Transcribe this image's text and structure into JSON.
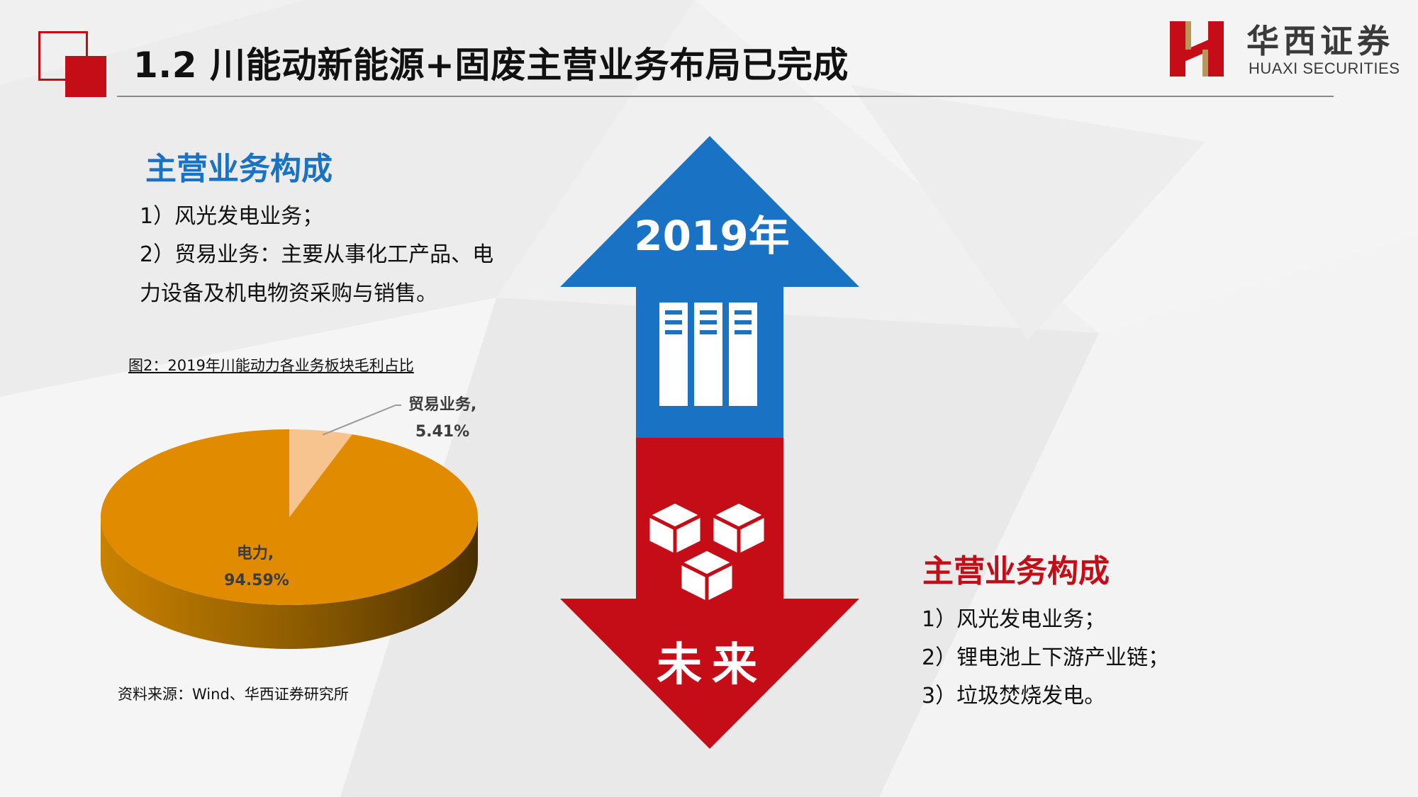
{
  "header": {
    "title": "1.2 川能动新能源+固废主营业务布局已完成"
  },
  "logo": {
    "cn": "华西证券",
    "en": "HUAXI SECURITIES",
    "colors": {
      "red": "#c40d16",
      "gold": "#b8975a"
    }
  },
  "left": {
    "heading": "主营业务构成",
    "items": [
      "1）风光发电业务；",
      "2）贸易业务：主要从事化工产品、电",
      "力设备及机电物资采购与销售。"
    ]
  },
  "chart": {
    "caption": "图2：2019年川能动力各业务板块毛利占比",
    "source": "资料来源：Wind、华西证券研究所"
  },
  "chart_data": {
    "type": "pie",
    "title": "图2：2019年川能动力各业务板块毛利占比",
    "style": "3d",
    "slices": [
      {
        "name": "电力",
        "value": 94.59,
        "label": "电力,",
        "value_label": "94.59%",
        "color": "#e18c00"
      },
      {
        "name": "贸易业务",
        "value": 5.41,
        "label": "贸易业务,",
        "value_label": "5.41%",
        "color": "#f7c490"
      }
    ]
  },
  "arrow": {
    "top_label": "2019年",
    "bottom_label": "未来",
    "colors": {
      "top": "#1a72c4",
      "bottom": "#c40d16"
    },
    "top_icon": "server-racks-icon",
    "bottom_icon": "stacked-cubes-icon"
  },
  "right": {
    "heading": "主营业务构成",
    "items": [
      "1）风光发电业务；",
      "2）锂电池上下游产业链；",
      "3）垃圾焚烧发电。"
    ]
  }
}
